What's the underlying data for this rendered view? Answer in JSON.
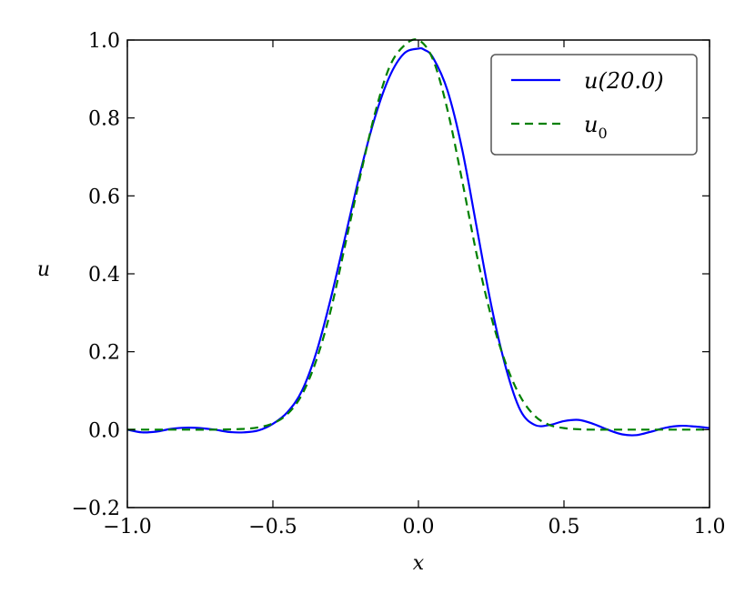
{
  "chart_data": {
    "type": "line",
    "title": "",
    "xlabel": "x",
    "ylabel": "u",
    "xlim": [
      -1.0,
      1.0
    ],
    "ylim": [
      -0.2,
      1.0
    ],
    "x_ticks": [
      -1.0,
      -0.5,
      0.0,
      0.5,
      1.0
    ],
    "x_tick_labels": [
      "−1.0",
      "−0.5",
      "0.0",
      "0.5",
      "1.0"
    ],
    "y_ticks": [
      -0.2,
      0.0,
      0.2,
      0.4,
      0.6,
      0.8,
      1.0
    ],
    "y_tick_labels": [
      "−0.2",
      "0.0",
      "0.2",
      "0.4",
      "0.6",
      "0.8",
      "1.0"
    ],
    "grid": false,
    "legend_position": "top-right",
    "series": [
      {
        "name": "u(20.0)",
        "color": "#0000ff",
        "line_style": "solid",
        "x": [
          -1.0,
          -0.95,
          -0.9,
          -0.85,
          -0.8,
          -0.75,
          -0.7,
          -0.65,
          -0.6,
          -0.55,
          -0.5,
          -0.45,
          -0.4,
          -0.35,
          -0.3,
          -0.25,
          -0.2,
          -0.15,
          -0.1,
          -0.05,
          0.0,
          0.02,
          0.05,
          0.1,
          0.15,
          0.2,
          0.25,
          0.3,
          0.35,
          0.4,
          0.45,
          0.5,
          0.55,
          0.6,
          0.65,
          0.7,
          0.75,
          0.8,
          0.85,
          0.9,
          0.95,
          1.0
        ],
        "y": [
          0.0,
          -0.007,
          -0.005,
          0.002,
          0.005,
          0.004,
          0.0,
          -0.006,
          -0.007,
          -0.002,
          0.015,
          0.045,
          0.1,
          0.2,
          0.34,
          0.5,
          0.66,
          0.8,
          0.905,
          0.965,
          0.978,
          0.975,
          0.955,
          0.87,
          0.72,
          0.52,
          0.32,
          0.16,
          0.05,
          0.012,
          0.012,
          0.022,
          0.025,
          0.015,
          0.0,
          -0.012,
          -0.014,
          -0.005,
          0.005,
          0.01,
          0.008,
          0.004
        ]
      },
      {
        "name": "u_0",
        "color": "#008000",
        "line_style": "dashed",
        "x": [
          -1.0,
          -0.9,
          -0.8,
          -0.7,
          -0.6,
          -0.55,
          -0.5,
          -0.45,
          -0.4,
          -0.35,
          -0.3,
          -0.25,
          -0.2,
          -0.15,
          -0.1,
          -0.05,
          0.0,
          0.05,
          0.1,
          0.15,
          0.2,
          0.25,
          0.3,
          0.35,
          0.4,
          0.45,
          0.5,
          0.55,
          0.6,
          0.7,
          0.8,
          0.9,
          1.0
        ],
        "y": [
          0.0,
          0.0,
          0.0,
          0.0,
          0.002,
          0.006,
          0.016,
          0.04,
          0.09,
          0.18,
          0.31,
          0.48,
          0.65,
          0.81,
          0.93,
          0.985,
          1.0,
          0.95,
          0.82,
          0.64,
          0.45,
          0.29,
          0.17,
          0.085,
          0.035,
          0.012,
          0.004,
          0.001,
          0.0,
          0.0,
          0.0,
          0.0,
          0.0
        ]
      }
    ]
  }
}
